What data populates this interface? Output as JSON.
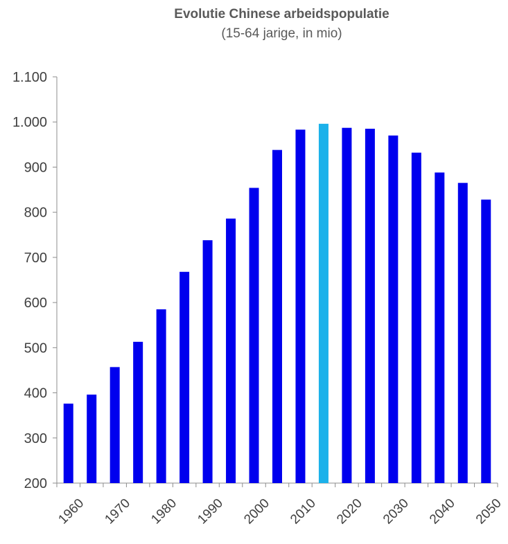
{
  "chart_data": {
    "type": "bar",
    "title": "Evolutie Chinese arbeidspopulatie",
    "subtitle": "(15-64 jarige, in mio)",
    "xlabel": "",
    "ylabel": "",
    "ylim": [
      200,
      1100
    ],
    "yticks": [
      "200",
      "300",
      "400",
      "500",
      "600",
      "700",
      "800",
      "900",
      "1.000",
      "1.100"
    ],
    "ytick_values": [
      200,
      300,
      400,
      500,
      600,
      700,
      800,
      900,
      1000,
      1100
    ],
    "categories": [
      "1960",
      "1965",
      "1970",
      "1975",
      "1980",
      "1985",
      "1990",
      "1995",
      "2000",
      "2005",
      "2010",
      "2015",
      "2020",
      "2025",
      "2030",
      "2035",
      "2040",
      "2045",
      "2050"
    ],
    "xtick_labels": [
      "1960",
      "1970",
      "1980",
      "1990",
      "2000",
      "2010",
      "2020",
      "2030",
      "2040",
      "2050"
    ],
    "values": [
      376,
      396,
      457,
      513,
      585,
      668,
      738,
      786,
      854,
      938,
      983,
      996,
      987,
      985,
      970,
      932,
      888,
      865,
      828
    ],
    "highlight_index": 11,
    "colors": {
      "bar": "#0000ee",
      "highlight": "#1bb1ea",
      "axis": "#8c8c8c"
    },
    "grid": false
  }
}
